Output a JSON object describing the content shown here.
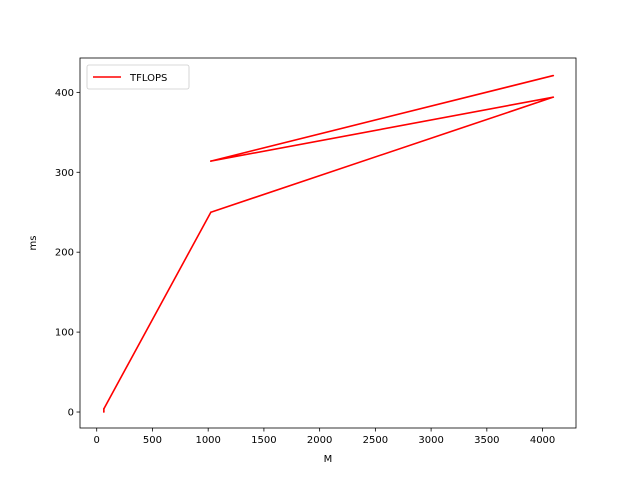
{
  "chart_data": {
    "type": "line",
    "title": "",
    "xlabel": "M",
    "ylabel": "ms",
    "xlim": [
      -150,
      4300
    ],
    "ylim": [
      -20,
      443
    ],
    "xticks": [
      0,
      500,
      1000,
      1500,
      2000,
      2500,
      3000,
      3500,
      4000
    ],
    "yticks": [
      0,
      100,
      200,
      300,
      400
    ],
    "grid": false,
    "legend_position": "top-left",
    "series": [
      {
        "name": "TFLOPS",
        "color": "#ff0000",
        "x": [
          64,
          64,
          1024,
          4096,
          1024,
          4096
        ],
        "y": [
          0,
          4,
          250,
          394,
          314,
          421
        ]
      }
    ]
  }
}
